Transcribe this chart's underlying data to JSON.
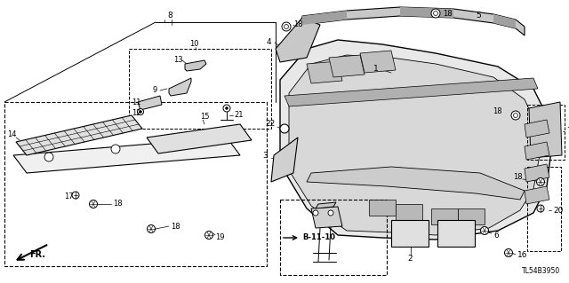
{
  "bg_color": "#ffffff",
  "diagram_code": "TL54B3950",
  "figsize": [
    6.4,
    3.19
  ],
  "dpi": 100
}
